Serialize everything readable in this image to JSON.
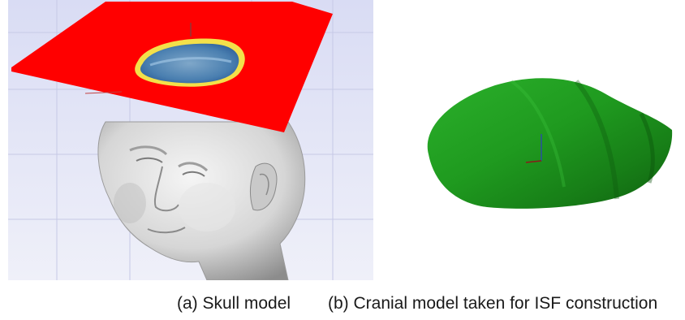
{
  "figure": {
    "panels": [
      {
        "caption": "(a) Skull model",
        "depicts": "3D head model with red cutting plane and highlighted cranial region"
      },
      {
        "caption": "(b) Cranial model taken for ISF construction",
        "depicts": "green cranial surface patch with local axes"
      }
    ]
  },
  "colors": {
    "viewport_background": "#d9dcf4",
    "cutting_plane": "#ff0000",
    "head_surface": "#d8d8d8",
    "cranial_patch": "#1e9a1e",
    "axis_x": "#8b1a1a",
    "axis_y": "#2a4fa0"
  }
}
